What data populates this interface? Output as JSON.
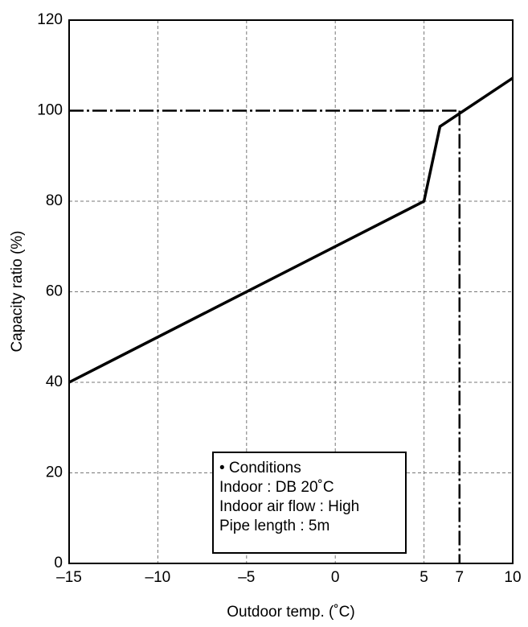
{
  "chart_data": {
    "type": "line",
    "x_label": "Outdoor temp. (˚C)",
    "y_label": "Capacity ratio (%)",
    "x": [
      -15,
      5,
      5.9,
      10
    ],
    "series": [
      {
        "color": "#000000",
        "values": [
          40,
          80,
          96.5,
          107.2
        ]
      }
    ],
    "xlim": [
      -15,
      10
    ],
    "ylim": [
      0,
      120
    ],
    "xticks": [
      {
        "value": -15,
        "label": "–15"
      },
      {
        "value": -10,
        "label": "–10"
      },
      {
        "value": -5,
        "label": "–5"
      },
      0,
      5,
      7,
      10
    ],
    "yticks": [
      0,
      20,
      40,
      60,
      80,
      100,
      120
    ],
    "grid": true,
    "reference": {
      "x": 7,
      "y": 100
    },
    "annotation": [
      "• Conditions",
      "Indoor : DB 20˚C",
      "Indoor air flow : High",
      "Pipe length : 5m"
    ]
  }
}
